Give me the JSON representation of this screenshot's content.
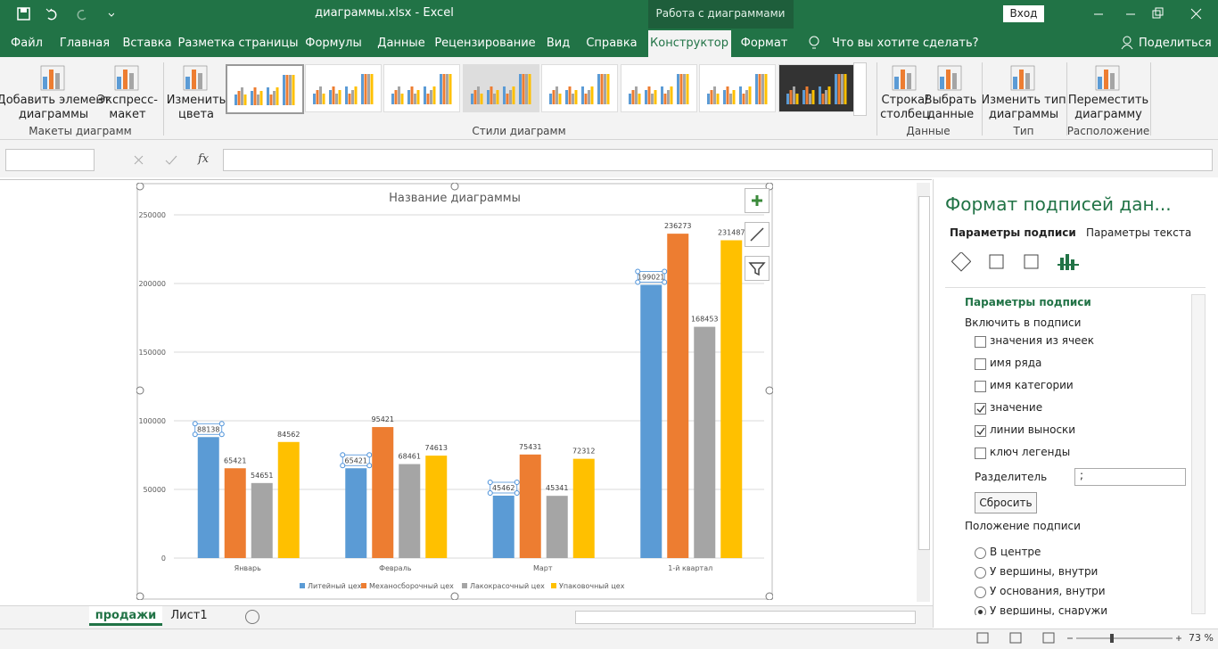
{
  "title_bar": {
    "file": "диаграммы.xlsx  -  Excel",
    "context": "Работа с диаграммами",
    "signin": "Вход"
  },
  "tabs": [
    "Файл",
    "Главная",
    "Вставка",
    "Разметка страницы",
    "Формулы",
    "Данные",
    "Рецензирование",
    "Вид",
    "Справка",
    "Конструктор",
    "Формат"
  ],
  "active_tab": 9,
  "search": "Что вы хотите сделать?",
  "share": "Поделиться",
  "ribbon": {
    "buttons": [
      [
        "Добавить элемент",
        "диаграммы"
      ],
      [
        "Экспресс-",
        "макет"
      ],
      [
        "Изменить",
        "цвета"
      ],
      [
        "Строка/",
        "столбец"
      ],
      [
        "Выбрать",
        "данные"
      ],
      [
        "Изменить тип",
        "диаграммы"
      ],
      [
        "Переместить",
        "диаграмму"
      ]
    ],
    "groups": [
      "Макеты диаграмм",
      "Стили диаграмм",
      "Данные",
      "Тип",
      "Расположение"
    ]
  },
  "formula_bar": {
    "fx": "fx"
  },
  "pane": {
    "title": "Формат подписей дан...",
    "tabs": [
      "Параметры подписи",
      "Параметры текста"
    ],
    "section": "Параметры подписи",
    "include": "Включить в подписи",
    "checkboxes": [
      {
        "label": "значения из ячеек",
        "checked": false
      },
      {
        "label": "имя ряда",
        "checked": false
      },
      {
        "label": "имя категории",
        "checked": false
      },
      {
        "label": "значение",
        "checked": true
      },
      {
        "label": "линии выноски",
        "checked": true
      },
      {
        "label": "ключ легенды",
        "checked": false
      }
    ],
    "separator_label": "Разделитель",
    "separator_value": ";",
    "reset": "Сбросить",
    "position": "Положение подписи",
    "radios": [
      {
        "label": "В центре",
        "selected": false
      },
      {
        "label": "У вершины, внутри",
        "selected": false
      },
      {
        "label": "У основания, внутри",
        "selected": false
      },
      {
        "label": "У вершины, снаружи",
        "selected": true
      }
    ]
  },
  "sheets": [
    "продажи",
    "Лист1"
  ],
  "active_sheet": 0,
  "zoom": "73 %",
  "chart_data": {
    "type": "bar",
    "title": "Название диаграммы",
    "categories": [
      "Январь",
      "Февраль",
      "Март",
      "1-й квартал"
    ],
    "series": [
      {
        "name": "Литейный цех",
        "color": "#5b9bd5",
        "values": [
          88138,
          65421,
          45462,
          199021
        ]
      },
      {
        "name": "Механосборочный цех",
        "color": "#ed7d31",
        "values": [
          65421,
          95421,
          75431,
          236273
        ]
      },
      {
        "name": "Лакокрасочный цех",
        "color": "#a5a5a5",
        "values": [
          54651,
          68461,
          45341,
          168453
        ]
      },
      {
        "name": "Упаковочный цех",
        "color": "#ffc000",
        "values": [
          84562,
          74613,
          72312,
          231487
        ]
      }
    ],
    "ylim": [
      0,
      250000
    ],
    "yticks": [
      0,
      50000,
      100000,
      150000,
      200000,
      250000
    ],
    "grid": true,
    "legend": "bottom",
    "selected_series": 0
  }
}
